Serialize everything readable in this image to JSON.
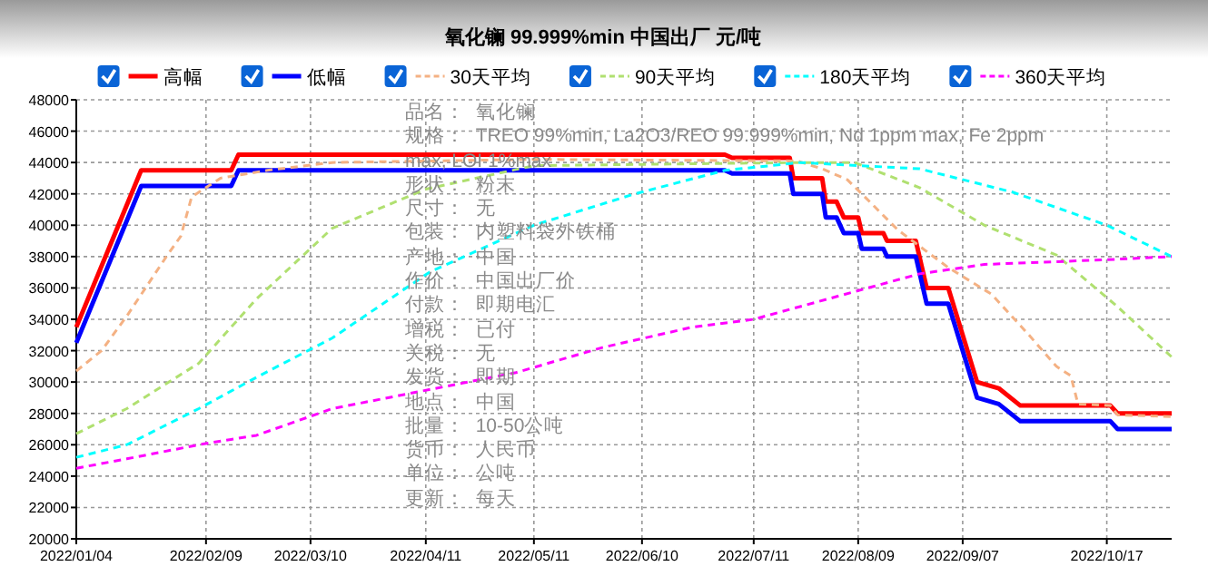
{
  "chart_data": {
    "type": "line",
    "title": "氧化镧 99.999%min 中国出厂 元/吨",
    "legend": "top",
    "grid": true,
    "marker": "none",
    "xlim": [
      "2022-01-04",
      "2022-11-04"
    ],
    "xticks": [
      {
        "value": "2022-01-04",
        "label": "2022/01/04"
      },
      {
        "value": "2022-02-09",
        "label": "2022/02/09"
      },
      {
        "value": "2022-03-10",
        "label": "2022/03/10"
      },
      {
        "value": "2022-04-11",
        "label": "2022/04/11"
      },
      {
        "value": "2022-05-11",
        "label": "2022/05/11"
      },
      {
        "value": "2022-06-10",
        "label": "2022/06/10"
      },
      {
        "value": "2022-07-11",
        "label": "2022/07/11"
      },
      {
        "value": "2022-08-09",
        "label": "2022/08/09"
      },
      {
        "value": "2022-09-07",
        "label": "2022/09/07"
      },
      {
        "value": "2022-10-17",
        "label": "2022/10/17"
      }
    ],
    "ylim": [
      20000,
      48000
    ],
    "yticks": [
      20000,
      22000,
      24000,
      26000,
      28000,
      30000,
      32000,
      34000,
      36000,
      38000,
      40000,
      42000,
      44000,
      46000,
      48000
    ],
    "series": [
      {
        "name": "高幅",
        "color": "#ff0000",
        "line_style": "solid",
        "x": [
          "2022-01-04",
          "2022-01-22",
          "2022-02-16",
          "2022-02-18",
          "2022-07-03",
          "2022-07-05",
          "2022-07-21",
          "2022-07-22",
          "2022-07-30",
          "2022-07-31",
          "2022-08-03",
          "2022-08-05",
          "2022-08-09",
          "2022-08-10",
          "2022-08-16",
          "2022-08-17",
          "2022-08-25",
          "2022-08-28",
          "2022-09-03",
          "2022-09-11",
          "2022-09-17",
          "2022-09-23",
          "2022-10-18",
          "2022-10-20",
          "2022-11-04"
        ],
        "values": [
          33500,
          43500,
          43500,
          44500,
          44500,
          44300,
          44300,
          43000,
          43000,
          41500,
          41500,
          40500,
          40500,
          39500,
          39500,
          39000,
          39000,
          36000,
          36000,
          30000,
          29600,
          28500,
          28500,
          28000,
          28000
        ]
      },
      {
        "name": "低幅",
        "color": "#0000ff",
        "line_style": "solid",
        "x": [
          "2022-01-04",
          "2022-01-22",
          "2022-02-16",
          "2022-02-18",
          "2022-07-03",
          "2022-07-05",
          "2022-07-21",
          "2022-07-22",
          "2022-07-30",
          "2022-07-31",
          "2022-08-03",
          "2022-08-05",
          "2022-08-09",
          "2022-08-10",
          "2022-08-16",
          "2022-08-17",
          "2022-08-25",
          "2022-08-28",
          "2022-09-03",
          "2022-09-11",
          "2022-09-17",
          "2022-09-23",
          "2022-10-18",
          "2022-10-20",
          "2022-11-04"
        ],
        "values": [
          32500,
          42500,
          42500,
          43500,
          43500,
          43300,
          43300,
          42000,
          42000,
          40500,
          40500,
          39500,
          39500,
          38500,
          38500,
          38000,
          38000,
          35000,
          35000,
          29000,
          28600,
          27500,
          27500,
          27000,
          27000
        ]
      },
      {
        "name": "30天平均",
        "color": "#f4b183",
        "line_style": "dashed",
        "x": [
          "2022-01-04",
          "2022-01-11",
          "2022-01-18",
          "2022-01-29",
          "2022-02-02",
          "2022-02-05",
          "2022-02-13",
          "2022-02-26",
          "2022-03-16",
          "2022-05-11",
          "2022-07-23",
          "2022-07-30",
          "2022-08-06",
          "2022-08-10",
          "2022-08-20",
          "2022-09-03",
          "2022-09-15",
          "2022-09-25",
          "2022-10-03",
          "2022-10-07",
          "2022-10-09",
          "2022-10-18",
          "2022-10-20",
          "2022-11-04"
        ],
        "values": [
          30700,
          32000,
          34200,
          38000,
          39300,
          41800,
          43000,
          43500,
          44000,
          44200,
          44100,
          43600,
          42900,
          42000,
          39700,
          37300,
          35600,
          33100,
          31000,
          30400,
          28600,
          28500,
          27900,
          27800
        ]
      },
      {
        "name": "90天平均",
        "color": "#b0e070",
        "line_style": "dashed",
        "x": [
          "2022-01-04",
          "2022-01-18",
          "2022-02-07",
          "2022-02-23",
          "2022-03-16",
          "2022-04-11",
          "2022-05-11",
          "2022-07-25",
          "2022-08-08",
          "2022-08-26",
          "2022-09-13",
          "2022-10-03",
          "2022-10-20",
          "2022-11-04"
        ],
        "values": [
          26700,
          28300,
          31200,
          35300,
          39800,
          42300,
          43800,
          44000,
          44000,
          42400,
          40000,
          38100,
          34800,
          31600
        ]
      },
      {
        "name": "180天平均",
        "color": "#00ffff",
        "line_style": "dashed",
        "x": [
          "2022-01-04",
          "2022-01-18",
          "2022-02-07",
          "2022-02-23",
          "2022-03-16",
          "2022-04-12",
          "2022-05-11",
          "2022-06-08",
          "2022-07-03",
          "2022-07-24",
          "2022-08-26",
          "2022-09-21",
          "2022-10-17",
          "2022-11-04"
        ],
        "values": [
          25200,
          26000,
          28300,
          30300,
          32800,
          37000,
          40000,
          42000,
          43500,
          44000,
          43600,
          42100,
          40000,
          38000
        ]
      },
      {
        "name": "360天平均",
        "color": "#ff00ff",
        "line_style": "dashed",
        "x": [
          "2022-01-04",
          "2022-01-18",
          "2022-02-07",
          "2022-02-23",
          "2022-03-16",
          "2022-05-06",
          "2022-05-30",
          "2022-06-24",
          "2022-07-11",
          "2022-08-26",
          "2022-09-13",
          "2022-10-17",
          "2022-11-04"
        ],
        "values": [
          24500,
          25100,
          26000,
          26600,
          28300,
          30600,
          32200,
          33500,
          34000,
          36900,
          37500,
          37800,
          38000
        ]
      }
    ],
    "annotations": [
      "品名：  氧化镧",
      "规格：  TREO 99%min, La2O3/REO 99.999%min, Nd 1ppm max, Fe 2ppm max, LOI 1%max",
      "形状：  粉末",
      "尺寸：  无",
      "包装：  内塑料袋外铁桶",
      "产地：  中国",
      "作价：  中国出厂价",
      "付款：  即期电汇",
      "增税：  已付",
      "关税：  无",
      "发货：  即期",
      "地点：  中国",
      "批量：  10-50公吨",
      "货币：  人民币",
      "单位：  公吨",
      "更新：  每天"
    ]
  }
}
